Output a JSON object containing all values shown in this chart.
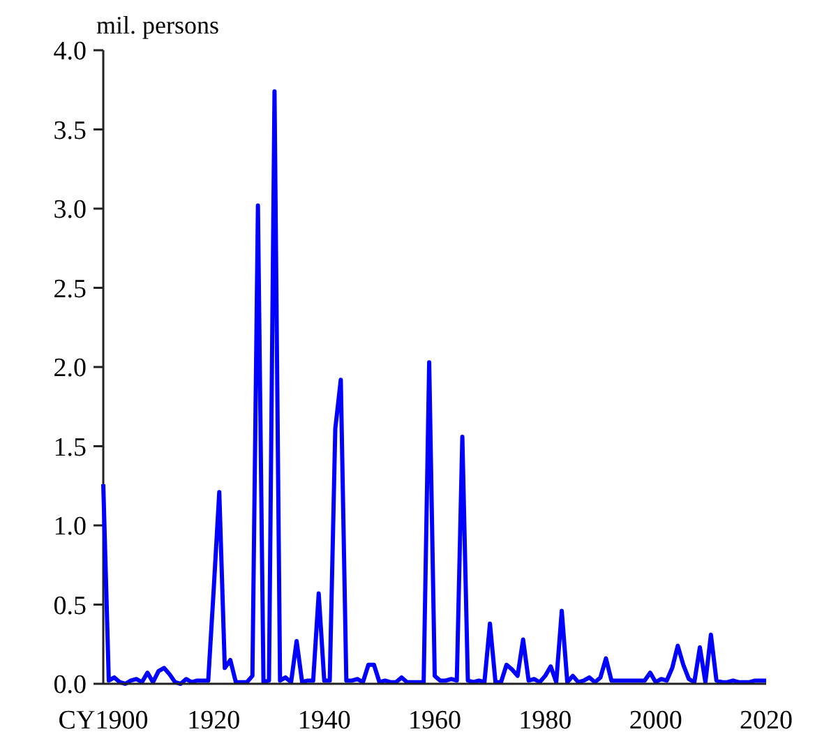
{
  "chart_data": {
    "type": "line",
    "ylabel": "mil.  persons",
    "x": [
      1900,
      1901,
      1902,
      1903,
      1904,
      1905,
      1906,
      1907,
      1908,
      1909,
      1910,
      1911,
      1912,
      1913,
      1914,
      1915,
      1916,
      1917,
      1918,
      1919,
      1920,
      1921,
      1922,
      1923,
      1924,
      1925,
      1926,
      1927,
      1928,
      1929,
      1930,
      1931,
      1932,
      1933,
      1934,
      1935,
      1936,
      1937,
      1938,
      1939,
      1940,
      1941,
      1942,
      1943,
      1944,
      1945,
      1946,
      1947,
      1948,
      1949,
      1950,
      1951,
      1952,
      1953,
      1954,
      1955,
      1956,
      1957,
      1958,
      1959,
      1960,
      1961,
      1962,
      1963,
      1964,
      1965,
      1966,
      1967,
      1968,
      1969,
      1970,
      1971,
      1972,
      1973,
      1974,
      1975,
      1976,
      1977,
      1978,
      1979,
      1980,
      1981,
      1982,
      1983,
      1984,
      1985,
      1986,
      1987,
      1988,
      1989,
      1990,
      1991,
      1992,
      1993,
      1994,
      1995,
      1996,
      1997,
      1998,
      1999,
      2000,
      2001,
      2002,
      2003,
      2004,
      2005,
      2006,
      2007,
      2008,
      2009,
      2010,
      2011,
      2012,
      2013,
      2014,
      2015,
      2016,
      2017,
      2018,
      2019,
      2020
    ],
    "series": [
      {
        "color": "#0000ff",
        "values": [
          1.26,
          0.02,
          0.04,
          0.01,
          0,
          0.02,
          0.03,
          0.01,
          0.07,
          0.01,
          0.08,
          0.1,
          0.06,
          0.01,
          0,
          0.03,
          0.01,
          0.02,
          0.02,
          0.02,
          0.6,
          1.21,
          0.1,
          0.15,
          0.01,
          0.01,
          0.01,
          0.05,
          3.02,
          0.01,
          0.02,
          3.74,
          0.02,
          0.04,
          0.01,
          0.27,
          0.01,
          0.02,
          0.02,
          0.57,
          0.02,
          0.02,
          1.61,
          1.92,
          0.02,
          0.02,
          0.03,
          0.01,
          0.12,
          0.12,
          0.01,
          0.02,
          0.01,
          0.01,
          0.04,
          0.01,
          0.01,
          0.01,
          0.01,
          2.03,
          0.05,
          0.02,
          0.02,
          0.03,
          0.02,
          1.56,
          0.02,
          0.01,
          0.02,
          0.01,
          0.38,
          0.01,
          0.01,
          0.12,
          0.09,
          0.05,
          0.28,
          0.02,
          0.03,
          0.01,
          0.05,
          0.11,
          0.01,
          0.46,
          0.01,
          0.05,
          0.01,
          0.02,
          0.04,
          0.01,
          0.04,
          0.16,
          0.02,
          0.02,
          0.02,
          0.02,
          0.02,
          0.02,
          0.02,
          0.07,
          0.01,
          0.03,
          0.02,
          0.1,
          0.24,
          0.12,
          0.03,
          0.01,
          0.23,
          0.01,
          0.31,
          0.02,
          0.01,
          0.01,
          0.02,
          0.01,
          0.01,
          0.01,
          0.02,
          0.02,
          0.02
        ]
      }
    ],
    "xlim": [
      1900,
      2020
    ],
    "xticks": [
      {
        "value": 1900,
        "label": "CY1900"
      },
      1920,
      1940,
      1960,
      1980,
      2000,
      2020
    ],
    "ylim": [
      0,
      4
    ],
    "yticks": [
      {
        "value": 0,
        "label": "0.0"
      },
      {
        "value": 0.5,
        "label": "0.5"
      },
      {
        "value": 1,
        "label": "1.0"
      },
      {
        "value": 1.5,
        "label": "1.5"
      },
      {
        "value": 2,
        "label": "2.0"
      },
      {
        "value": 2.5,
        "label": "2.5"
      },
      {
        "value": 3,
        "label": "3.0"
      },
      {
        "value": 3.5,
        "label": "3.5"
      },
      {
        "value": 4,
        "label": "4.0"
      }
    ],
    "marker": "none",
    "line_style": "solid"
  }
}
